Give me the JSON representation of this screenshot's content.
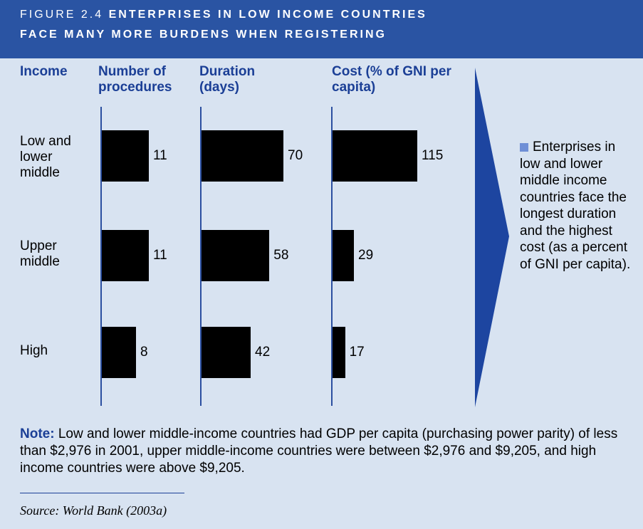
{
  "chart_data": {
    "type": "bar",
    "figure_label": "FIGURE 2.4",
    "title_lines": [
      "ENTERPRISES IN LOW INCOME COUNTRIES",
      "FACE MANY MORE BURDENS WHEN REGISTERING"
    ],
    "category_label": "Income",
    "categories": [
      "Low and lower middle",
      "Upper middle",
      "High"
    ],
    "series": [
      {
        "name": "Number of procedures",
        "color": "#000000",
        "values": [
          11,
          11,
          8
        ]
      },
      {
        "name": "Duration (days)",
        "color": "#000000",
        "values": [
          70,
          58,
          42
        ]
      },
      {
        "name": "Cost (% of GNI per capita)",
        "color": "#000000",
        "values": [
          115,
          29,
          17
        ]
      }
    ],
    "annotation": "Enterprises in low and lower middle income countries face the longest duration and the highest cost (as a percent of GNI per capita).",
    "note_label": "Note:",
    "note": "Low and lower middle-income countries had GDP per capita (purchasing power parity) of less than $2,976 in 2001, upper middle-income countries were between $2,976 and $9,205, and high income countries were above $9,205.",
    "source": "Source: World Bank (2003a)"
  }
}
